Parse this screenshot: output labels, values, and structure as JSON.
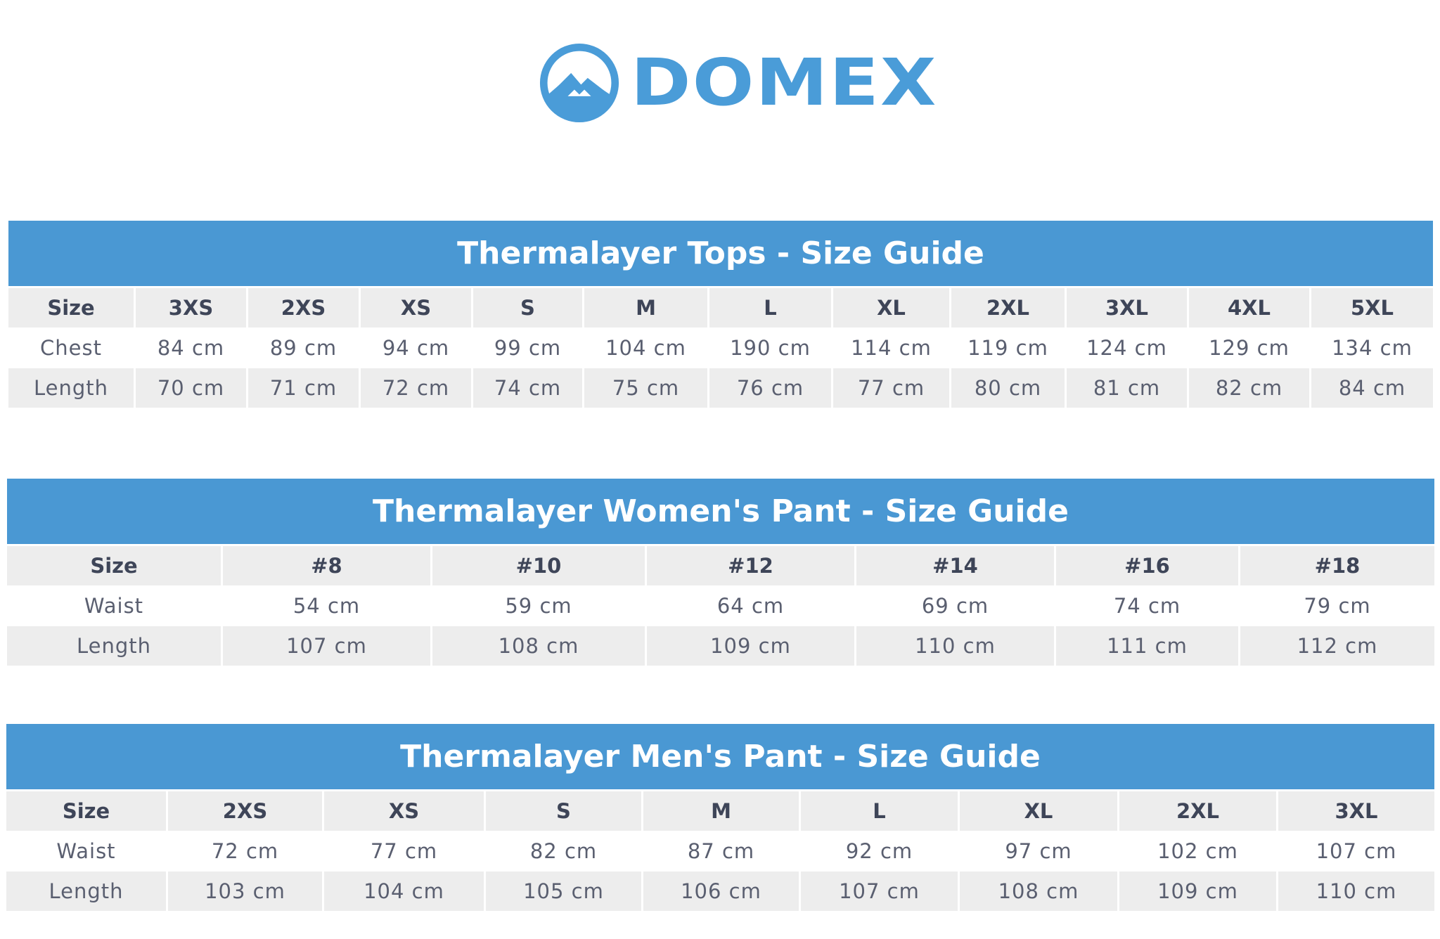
{
  "brand": {
    "name": "DOMEX",
    "color": "#4a9cd8"
  },
  "header_color": "#4a98d3",
  "tables": [
    {
      "title": "Thermalayer Tops - Size Guide",
      "headers": [
        "Size",
        "3XS",
        "2XS",
        "XS",
        "S",
        "M",
        "L",
        "XL",
        "2XL",
        "3XL",
        "4XL",
        "5XL"
      ],
      "rows": [
        [
          "Chest",
          "84 cm",
          "89 cm",
          "94 cm",
          "99 cm",
          "104 cm",
          "190 cm",
          "114 cm",
          "119 cm",
          "124 cm",
          "129 cm",
          "134 cm"
        ],
        [
          "Length",
          "70 cm",
          "71 cm",
          "72 cm",
          "74 cm",
          "75 cm",
          "76 cm",
          "77 cm",
          "80 cm",
          "81 cm",
          "82 cm",
          "84 cm"
        ]
      ]
    },
    {
      "title": "Thermalayer Women's Pant - Size Guide",
      "headers": [
        "Size",
        "#8",
        "#10",
        "#12",
        "#14",
        "#16",
        "#18"
      ],
      "rows": [
        [
          "Waist",
          "54 cm",
          "59 cm",
          "64 cm",
          "69 cm",
          "74 cm",
          "79 cm"
        ],
        [
          "Length",
          "107 cm",
          "108 cm",
          "109 cm",
          "110 cm",
          "111 cm",
          "112 cm"
        ]
      ]
    },
    {
      "title": "Thermalayer Men's Pant - Size Guide",
      "headers": [
        "Size",
        "2XS",
        "XS",
        "S",
        "M",
        "L",
        "XL",
        "2XL",
        "3XL"
      ],
      "rows": [
        [
          "Waist",
          "72 cm",
          "77 cm",
          "82 cm",
          "87 cm",
          "92 cm",
          "97 cm",
          "102 cm",
          "107 cm"
        ],
        [
          "Length",
          "103 cm",
          "104 cm",
          "105 cm",
          "106 cm",
          "107 cm",
          "108 cm",
          "109 cm",
          "110 cm"
        ]
      ]
    }
  ]
}
